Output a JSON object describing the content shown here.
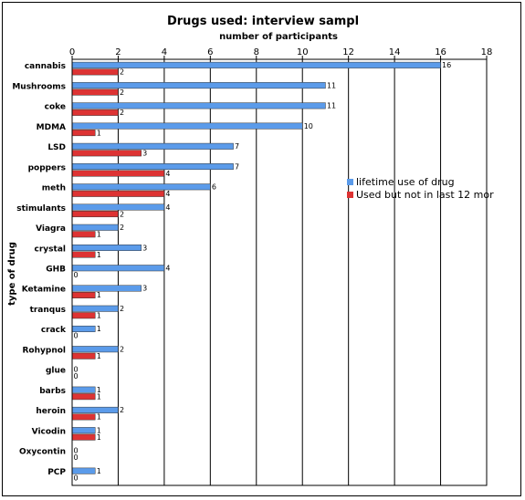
{
  "chart_data": {
    "type": "bar",
    "orientation": "horizontal",
    "title": "Drugs used: interview sampl",
    "xlabel": "number of participants",
    "ylabel": "type of drug",
    "xlim": [
      0,
      18
    ],
    "xticks": [
      0,
      2,
      4,
      6,
      8,
      10,
      12,
      14,
      16,
      18
    ],
    "grid": true,
    "legend_position": "right",
    "categories": [
      "cannabis",
      "Mushrooms",
      "coke",
      "MDMA",
      "LSD",
      "poppers",
      "meth",
      "stimulants",
      "Viagra",
      "crystal",
      "GHB",
      "Ketamine",
      "tranqus",
      "crack",
      "Rohypnol",
      "glue",
      "barbs",
      "heroin",
      "Vicodin",
      "Oxycontin",
      "PCP"
    ],
    "series": [
      {
        "name": "lifetime use of drug",
        "color": "#5B9BEA",
        "values": [
          16,
          11,
          11,
          10,
          7,
          7,
          6,
          4,
          2,
          3,
          4,
          3,
          2,
          1,
          2,
          0,
          1,
          2,
          1,
          0,
          1
        ]
      },
      {
        "name": "Used but not in last 12 mor",
        "color": "#DD3333",
        "values": [
          2,
          2,
          2,
          1,
          3,
          4,
          4,
          2,
          1,
          1,
          0,
          1,
          1,
          0,
          1,
          0,
          1,
          1,
          1,
          0,
          0
        ]
      }
    ]
  }
}
